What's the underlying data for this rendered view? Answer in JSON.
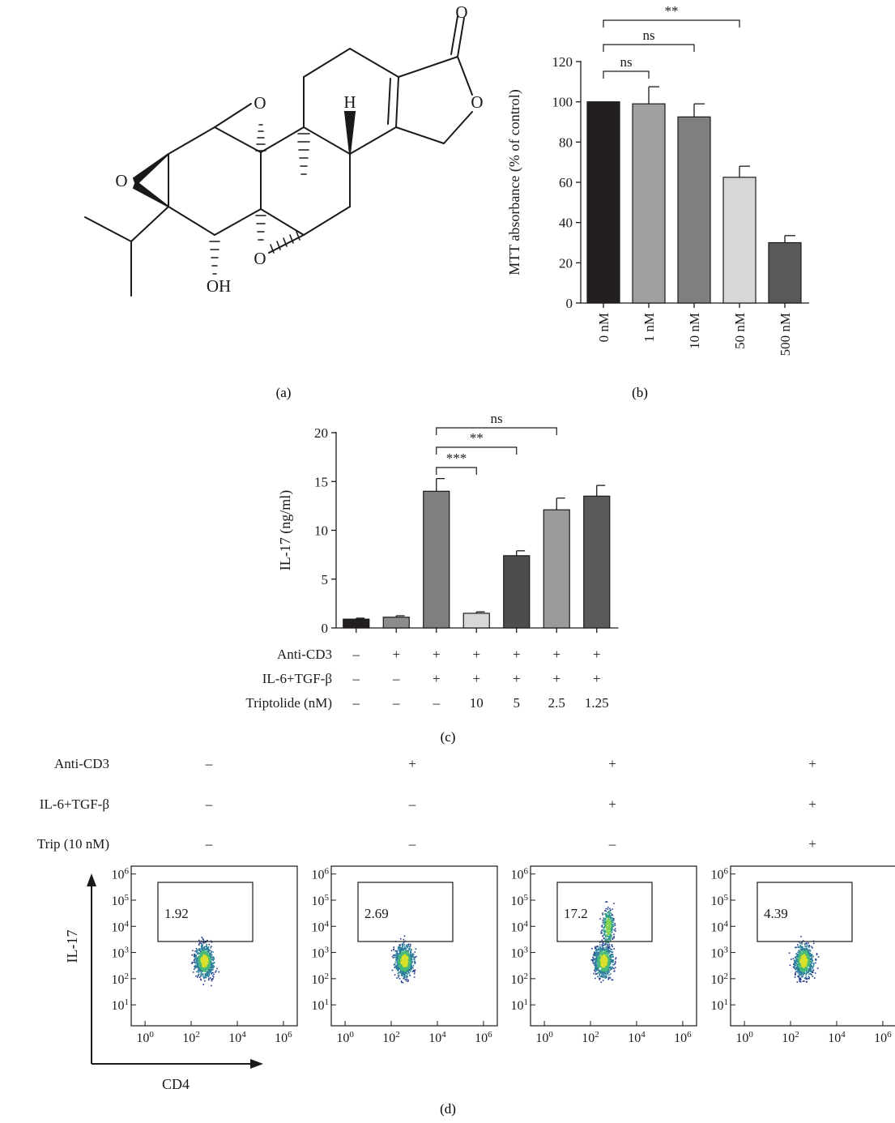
{
  "panels": {
    "a": {
      "label": "(a)"
    },
    "b": {
      "label": "(b)"
    },
    "c": {
      "label": "(c)"
    },
    "d": {
      "label": "(d)"
    }
  },
  "molecule_atoms": [
    "O",
    "O",
    "H",
    "O",
    "O",
    "O",
    "OH"
  ],
  "chart_data": [
    {
      "panel": "b",
      "type": "bar",
      "ylabel": "MTT absorbance (% of control)",
      "categories": [
        "0 nM",
        "1 nM",
        "10 nM",
        "50 nM",
        "500 nM"
      ],
      "values": [
        100,
        99,
        92.5,
        62.5,
        30
      ],
      "errors": [
        0,
        8.5,
        6.5,
        5.5,
        3.5
      ],
      "ylim": [
        0,
        120
      ],
      "yticks": [
        0,
        20,
        40,
        60,
        80,
        100,
        120
      ],
      "colors": [
        "#231f20",
        "#a0a0a0",
        "#7f7f7f",
        "#d7d7d7",
        "#595959"
      ],
      "significance": [
        {
          "from": 0,
          "to": 1,
          "label": "ns"
        },
        {
          "from": 0,
          "to": 2,
          "label": "ns"
        },
        {
          "from": 0,
          "to": 3,
          "label": "**"
        }
      ]
    },
    {
      "panel": "c",
      "type": "bar",
      "ylabel": "IL-17 (ng/ml)",
      "categories": [
        "1",
        "2",
        "3",
        "4",
        "5",
        "6",
        "7"
      ],
      "values": [
        0.9,
        1.1,
        14.0,
        1.5,
        7.4,
        12.1,
        13.5
      ],
      "errors": [
        0.1,
        0.15,
        1.3,
        0.15,
        0.5,
        1.2,
        1.1
      ],
      "ylim": [
        0,
        20
      ],
      "yticks": [
        0,
        5,
        10,
        15,
        20
      ],
      "colors": [
        "#231f20",
        "#8c8c8c",
        "#7f7f7f",
        "#d7d7d7",
        "#4d4d4d",
        "#9a9a9a",
        "#5a5a5a"
      ],
      "significance": [
        {
          "from": 2,
          "to": 3,
          "label": "***"
        },
        {
          "from": 2,
          "to": 4,
          "label": "**"
        },
        {
          "from": 2,
          "to": 5,
          "label": "ns"
        }
      ],
      "conditions": [
        {
          "label": "Anti-CD3",
          "values": [
            "–",
            "+",
            "+",
            "+",
            "+",
            "+",
            "+"
          ]
        },
        {
          "label": "IL-6+TGF-β",
          "values": [
            "–",
            "–",
            "+",
            "+",
            "+",
            "+",
            "+"
          ]
        },
        {
          "label": "Triptolide (nM)",
          "values": [
            "–",
            "–",
            "–",
            "10",
            "5",
            "2.5",
            "1.25"
          ]
        }
      ]
    },
    {
      "panel": "d",
      "type": "scatter",
      "xlabel": "CD4",
      "ylabel": "IL-17",
      "scale": "log",
      "tick_exponents": [
        0,
        2,
        4,
        6
      ],
      "y_tick_exponents": [
        1,
        2,
        3,
        4,
        5,
        6
      ],
      "conditions": [
        {
          "label": "Anti-CD3",
          "values": [
            "–",
            "+",
            "+",
            "+"
          ]
        },
        {
          "label": "IL-6+TGF-β",
          "values": [
            "–",
            "–",
            "+",
            "+"
          ]
        },
        {
          "label": "Trip (10 nM)",
          "values": [
            "–",
            "–",
            "–",
            "+"
          ]
        }
      ],
      "gate_percentages": [
        "1.92",
        "2.69",
        "17.2",
        "4.39"
      ]
    }
  ]
}
